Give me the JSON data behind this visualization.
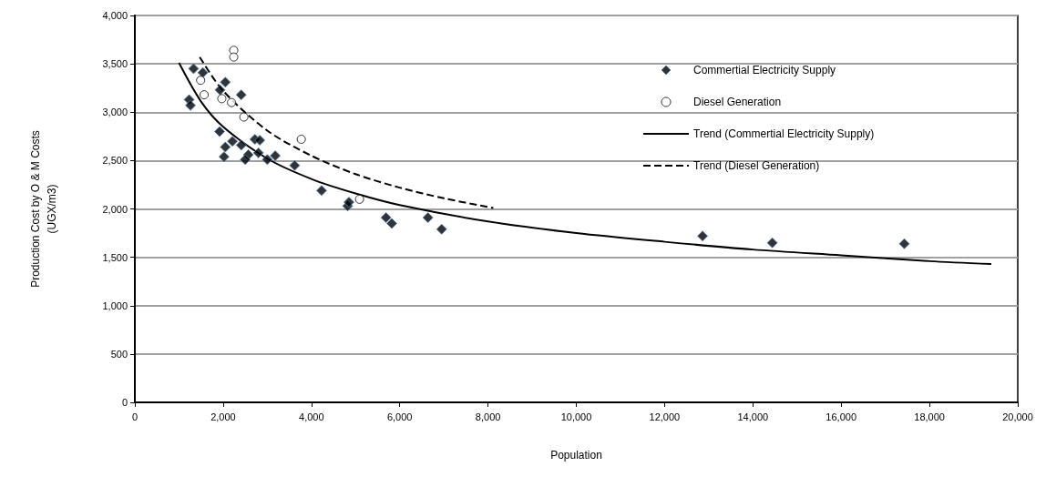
{
  "chart_data": {
    "type": "scatter",
    "xlabel": "Population",
    "ylabel": "Production Cost by O & M Costs\n(UGX/m3)",
    "xlim": [
      0,
      20000
    ],
    "xticks": [
      0,
      {
        "value": 2000,
        "label": "2,000"
      },
      {
        "value": 4000,
        "label": "4,000"
      },
      {
        "value": 6000,
        "label": "6,000"
      },
      {
        "value": 8000,
        "label": "8,000"
      },
      {
        "value": 10000,
        "label": "10,000"
      },
      {
        "value": 12000,
        "label": "12,000"
      },
      {
        "value": 14000,
        "label": "14,000"
      },
      {
        "value": 16000,
        "label": "16,000"
      },
      {
        "value": 18000,
        "label": "18,000"
      },
      {
        "value": 20000,
        "label": "20,000"
      }
    ],
    "ylim": [
      0,
      4000
    ],
    "yticks": [
      0,
      500,
      {
        "value": 1000,
        "label": "1,000"
      },
      {
        "value": 1500,
        "label": "1,500"
      },
      {
        "value": 2000,
        "label": "2,000"
      },
      {
        "value": 2500,
        "label": "2,500"
      },
      {
        "value": 3000,
        "label": "3,000"
      },
      {
        "value": 3500,
        "label": "3,500"
      },
      {
        "value": 4000,
        "label": "4,000"
      }
    ],
    "grid": "y",
    "legend": "top right",
    "series": [
      {
        "name": "Commertial Electricity Supply",
        "marker": "diamond",
        "color": "#000000",
        "x": [
          1330,
          1540,
          1230,
          1260,
          2050,
          1930,
          2410,
          1920,
          2050,
          2210,
          2020,
          2410,
          2570,
          2500,
          2720,
          2830,
          2800,
          3000,
          3180,
          3620,
          4230,
          4820,
          4850,
          5690,
          5820,
          6640,
          6950,
          12860,
          14440,
          17430
        ],
        "values": [
          3450,
          3410,
          3130,
          3070,
          3310,
          3230,
          3180,
          2800,
          2640,
          2700,
          2540,
          2660,
          2560,
          2510,
          2720,
          2710,
          2580,
          2510,
          2550,
          2450,
          2190,
          2030,
          2070,
          1910,
          1850,
          1910,
          1790,
          1720,
          1650,
          1640
        ]
      },
      {
        "name": "Diesel Generation",
        "marker": "circle",
        "color": "#ffffff",
        "x": [
          2240,
          2240,
          1490,
          1570,
          1970,
          2190,
          2470,
          3770,
          5090
        ],
        "values": [
          3640,
          3570,
          3330,
          3180,
          3140,
          3100,
          2950,
          2720,
          2100
        ]
      },
      {
        "name": "Trend (Commertial Electricity Supply)",
        "type": "line",
        "marker": "none",
        "line_style": "solid",
        "color": "#000000",
        "x": [
          1000,
          1500,
          2000,
          3000,
          4000,
          5000,
          6000,
          8000,
          10000,
          12000,
          14000,
          16000,
          18000,
          19400
        ],
        "values": [
          3510,
          3110,
          2850,
          2520,
          2310,
          2160,
          2040,
          1870,
          1750,
          1660,
          1580,
          1520,
          1460,
          1430
        ]
      },
      {
        "name": "Trend (Diesel Generation)",
        "type": "line",
        "marker": "none",
        "line_style": "dashed",
        "color": "#000000",
        "x": [
          1470,
          2000,
          3000,
          4000,
          5000,
          6000,
          7000,
          8120
        ],
        "values": [
          3570,
          3220,
          2810,
          2550,
          2360,
          2220,
          2110,
          2010
        ]
      }
    ]
  }
}
